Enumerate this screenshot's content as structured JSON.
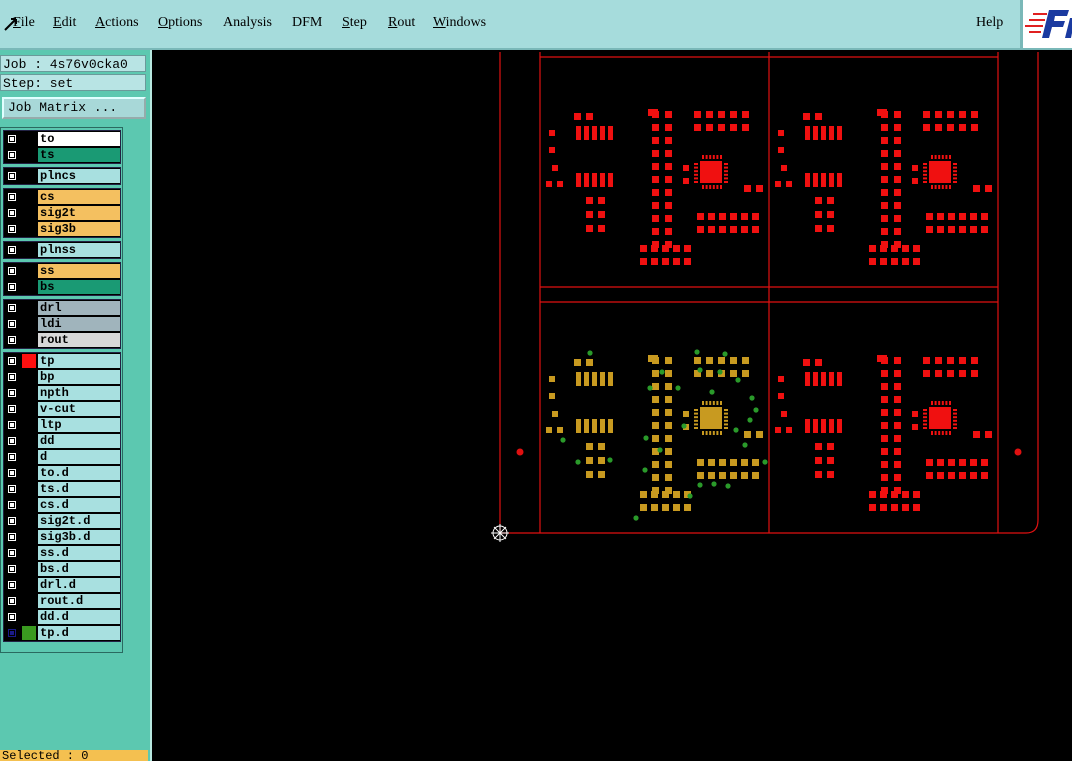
{
  "menu": {
    "items": [
      "File",
      "Edit",
      "Actions",
      "Options",
      "Analysis",
      "DFM",
      "Step",
      "Rout",
      "Windows"
    ],
    "help": "Help"
  },
  "job_panel": {
    "job": "Job : 4s76v0cka0",
    "step": "Step: set",
    "job_matrix_button": "Job Matrix ..."
  },
  "layers": {
    "groups": [
      [
        {
          "name": "to",
          "color": "#ffffff"
        },
        {
          "name": "ts",
          "color": "#1a9a74"
        }
      ],
      [
        {
          "name": "plncs",
          "color": "#a8e0e0"
        }
      ],
      [
        {
          "name": "cs",
          "color": "#f4c060"
        },
        {
          "name": "sig2t",
          "color": "#f4c060"
        },
        {
          "name": "sig3b",
          "color": "#f4c060"
        }
      ],
      [
        {
          "name": "plnss",
          "color": "#a8e0e0"
        }
      ],
      [
        {
          "name": "ss",
          "color": "#f4c060"
        },
        {
          "name": "bs",
          "color": "#1a9a74"
        }
      ],
      [
        {
          "name": "drl",
          "color": "#a0b4bc"
        },
        {
          "name": "ldi",
          "color": "#a0b4bc"
        },
        {
          "name": "rout",
          "color": "#d8d8d8"
        }
      ],
      [
        {
          "name": "tp",
          "color": "#a8e0e0",
          "mark": "#ff1010"
        },
        {
          "name": "bp",
          "color": "#a8e0e0"
        },
        {
          "name": "npth",
          "color": "#a8e0e0"
        },
        {
          "name": "v-cut",
          "color": "#a8e0e0"
        },
        {
          "name": "ltp",
          "color": "#a8e0e0"
        },
        {
          "name": "dd",
          "color": "#a8e0e0"
        },
        {
          "name": "d",
          "color": "#a8e0e0"
        },
        {
          "name": "to.d",
          "color": "#a8e0e0"
        },
        {
          "name": "ts.d",
          "color": "#a8e0e0"
        },
        {
          "name": "cs.d",
          "color": "#a8e0e0"
        },
        {
          "name": "sig2t.d",
          "color": "#a8e0e0"
        },
        {
          "name": "sig3b.d",
          "color": "#a8e0e0"
        },
        {
          "name": "ss.d",
          "color": "#a8e0e0"
        },
        {
          "name": "bs.d",
          "color": "#a8e0e0"
        },
        {
          "name": "drl.d",
          "color": "#a8e0e0"
        },
        {
          "name": "rout.d",
          "color": "#a8e0e0"
        },
        {
          "name": "dd.d",
          "color": "#a8e0e0"
        },
        {
          "name": "tp.d",
          "color": "#a8e0e0",
          "mark": "#3a9a20",
          "checked": true
        }
      ]
    ]
  },
  "status": {
    "selected": "Selected : 0"
  }
}
